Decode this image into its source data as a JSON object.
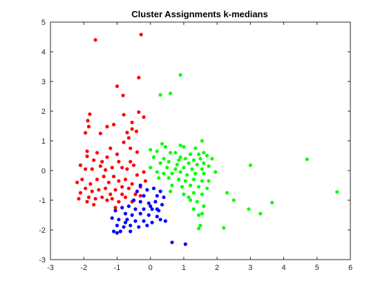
{
  "chart_data": {
    "type": "scatter",
    "title": "Cluster Assignments k-medians",
    "xlabel": "",
    "ylabel": "",
    "xlim": [
      -3,
      6
    ],
    "ylim": [
      -3,
      5
    ],
    "xticks": [
      -3,
      -2,
      -1,
      0,
      1,
      2,
      3,
      4,
      5,
      6
    ],
    "yticks": [
      -3,
      -2,
      -1,
      0,
      1,
      2,
      3,
      4,
      5
    ],
    "grid": false,
    "legend": "none",
    "series": [
      {
        "color": "#ff0000",
        "points": [
          [
            -1.65,
            4.4
          ],
          [
            -0.28,
            4.58
          ],
          [
            -0.35,
            3.13
          ],
          [
            -1.0,
            2.84
          ],
          [
            -0.82,
            2.53
          ],
          [
            -1.82,
            1.9
          ],
          [
            -1.88,
            1.68
          ],
          [
            -0.8,
            1.88
          ],
          [
            -0.35,
            1.97
          ],
          [
            -0.2,
            1.8
          ],
          [
            -1.85,
            1.48
          ],
          [
            -1.3,
            1.48
          ],
          [
            -1.95,
            1.27
          ],
          [
            -0.55,
            1.62
          ],
          [
            -1.1,
            1.55
          ],
          [
            -0.55,
            1.4
          ],
          [
            -0.7,
            1.28
          ],
          [
            -1.5,
            1.25
          ],
          [
            -0.65,
            1.1
          ],
          [
            -0.42,
            1.32
          ],
          [
            -0.8,
            0.95
          ],
          [
            -1.9,
            0.65
          ],
          [
            -1.9,
            0.48
          ],
          [
            -1.6,
            0.6
          ],
          [
            -1.2,
            0.75
          ],
          [
            -1.0,
            0.55
          ],
          [
            -0.6,
            0.75
          ],
          [
            -0.4,
            0.62
          ],
          [
            -2.1,
            0.18
          ],
          [
            -1.7,
            0.35
          ],
          [
            -1.45,
            0.3
          ],
          [
            -1.3,
            0.45
          ],
          [
            -0.95,
            0.3
          ],
          [
            -0.6,
            0.3
          ],
          [
            -0.5,
            0.18
          ],
          [
            -1.95,
            0.05
          ],
          [
            -1.75,
            0.05
          ],
          [
            -1.5,
            0.15
          ],
          [
            -1.35,
            0.02
          ],
          [
            -1.15,
            0.1
          ],
          [
            -0.85,
            0.1
          ],
          [
            -0.7,
            0.05
          ],
          [
            -2.2,
            -0.4
          ],
          [
            -2.05,
            -0.3
          ],
          [
            -1.8,
            -0.45
          ],
          [
            -1.6,
            -0.3
          ],
          [
            -1.4,
            -0.2
          ],
          [
            -1.25,
            -0.4
          ],
          [
            -1.1,
            -0.2
          ],
          [
            -0.95,
            -0.35
          ],
          [
            -0.75,
            -0.3
          ],
          [
            -0.55,
            -0.45
          ],
          [
            -0.4,
            -0.15
          ],
          [
            -0.2,
            -0.05
          ],
          [
            -0.15,
            -0.35
          ],
          [
            -2.1,
            -0.75
          ],
          [
            -1.95,
            -0.6
          ],
          [
            -1.75,
            -0.7
          ],
          [
            -1.55,
            -0.65
          ],
          [
            -1.35,
            -0.6
          ],
          [
            -1.2,
            -0.8
          ],
          [
            -1.05,
            -0.65
          ],
          [
            -0.85,
            -0.55
          ],
          [
            -0.65,
            -0.6
          ],
          [
            -0.45,
            -0.8
          ],
          [
            -0.3,
            -0.55
          ],
          [
            -2.15,
            -0.95
          ],
          [
            -1.85,
            -0.9
          ],
          [
            -1.65,
            -0.95
          ],
          [
            -1.45,
            -0.9
          ],
          [
            -1.3,
            -1.0
          ],
          [
            -1.15,
            -0.95
          ],
          [
            -0.95,
            -1.05
          ],
          [
            -0.75,
            -0.9
          ],
          [
            -0.55,
            -1.05
          ],
          [
            -1.9,
            -1.05
          ],
          [
            -1.7,
            -1.15
          ],
          [
            -1.05,
            -1.25
          ],
          [
            -0.85,
            -0.8
          ],
          [
            -0.3,
            -0.85
          ]
        ]
      },
      {
        "color": "#0000ff",
        "points": [
          [
            -0.3,
            -0.5
          ],
          [
            -0.1,
            -0.65
          ],
          [
            0.1,
            -0.6
          ],
          [
            0.3,
            -0.7
          ],
          [
            -0.2,
            -0.85
          ],
          [
            0.2,
            -0.85
          ],
          [
            0.4,
            -0.9
          ],
          [
            -0.5,
            -1.0
          ],
          [
            -0.3,
            -1.05
          ],
          [
            -0.05,
            -1.1
          ],
          [
            0.15,
            -1.05
          ],
          [
            0.35,
            -1.15
          ],
          [
            -0.65,
            -1.2
          ],
          [
            -0.85,
            -1.25
          ],
          [
            -0.45,
            -1.3
          ],
          [
            -0.2,
            -1.3
          ],
          [
            0.05,
            -1.3
          ],
          [
            0.25,
            -1.35
          ],
          [
            -1.05,
            -1.35
          ],
          [
            -0.75,
            -1.45
          ],
          [
            -0.55,
            -1.5
          ],
          [
            -0.3,
            -1.45
          ],
          [
            -0.05,
            -1.5
          ],
          [
            0.2,
            -1.55
          ],
          [
            -1.15,
            -1.6
          ],
          [
            -0.95,
            -1.65
          ],
          [
            -0.7,
            -1.65
          ],
          [
            -0.45,
            -1.7
          ],
          [
            -0.2,
            -1.7
          ],
          [
            0.05,
            -1.75
          ],
          [
            0.3,
            -1.65
          ],
          [
            0.45,
            -1.7
          ],
          [
            -1.0,
            -1.85
          ],
          [
            -0.8,
            -1.9
          ],
          [
            -0.6,
            -1.85
          ],
          [
            -0.35,
            -1.9
          ],
          [
            -0.1,
            -1.85
          ],
          [
            -1.1,
            -2.05
          ],
          [
            -0.9,
            -2.05
          ],
          [
            -0.6,
            -2.05
          ],
          [
            -1.0,
            -2.1
          ],
          [
            -0.75,
            -1.75
          ],
          [
            0.0,
            -1.2
          ],
          [
            -0.4,
            -0.7
          ],
          [
            0.2,
            -1.3
          ],
          [
            0.65,
            -2.42
          ],
          [
            1.05,
            -2.48
          ]
        ]
      },
      {
        "color": "#00ff00",
        "points": [
          [
            0.9,
            3.22
          ],
          [
            0.3,
            2.55
          ],
          [
            0.6,
            2.6
          ],
          [
            3.0,
            0.18
          ],
          [
            4.7,
            0.38
          ],
          [
            5.6,
            -0.72
          ],
          [
            2.3,
            -0.75
          ],
          [
            2.5,
            -1.0
          ],
          [
            2.95,
            -1.3
          ],
          [
            3.3,
            -1.45
          ],
          [
            3.65,
            -1.08
          ],
          [
            2.2,
            -1.93
          ],
          [
            1.45,
            -1.95
          ],
          [
            1.5,
            -1.85
          ],
          [
            1.55,
            1.0
          ],
          [
            0.35,
            0.9
          ],
          [
            0.45,
            0.8
          ],
          [
            0.9,
            0.85
          ],
          [
            1.0,
            0.8
          ],
          [
            1.35,
            0.75
          ],
          [
            0.0,
            0.7
          ],
          [
            0.2,
            0.65
          ],
          [
            0.6,
            0.6
          ],
          [
            0.75,
            0.6
          ],
          [
            1.2,
            0.55
          ],
          [
            1.45,
            0.55
          ],
          [
            1.6,
            0.6
          ],
          [
            1.7,
            0.5
          ],
          [
            0.1,
            0.45
          ],
          [
            0.4,
            0.4
          ],
          [
            0.9,
            0.45
          ],
          [
            1.05,
            0.4
          ],
          [
            1.3,
            0.35
          ],
          [
            1.5,
            0.4
          ],
          [
            1.85,
            0.4
          ],
          [
            0.3,
            0.25
          ],
          [
            0.55,
            0.3
          ],
          [
            0.8,
            0.2
          ],
          [
            1.15,
            0.25
          ],
          [
            1.4,
            0.2
          ],
          [
            1.6,
            0.25
          ],
          [
            0.0,
            0.1
          ],
          [
            0.5,
            0.1
          ],
          [
            0.75,
            0.05
          ],
          [
            1.0,
            0.1
          ],
          [
            1.25,
            0.05
          ],
          [
            1.55,
            0.05
          ],
          [
            1.75,
            0.15
          ],
          [
            0.2,
            -0.05
          ],
          [
            0.4,
            -0.1
          ],
          [
            0.65,
            -0.1
          ],
          [
            0.9,
            -0.05
          ],
          [
            1.1,
            -0.15
          ],
          [
            1.35,
            -0.1
          ],
          [
            1.6,
            -0.1
          ],
          [
            0.25,
            -0.25
          ],
          [
            0.55,
            -0.25
          ],
          [
            0.85,
            -0.3
          ],
          [
            1.05,
            -0.35
          ],
          [
            1.3,
            -0.3
          ],
          [
            1.55,
            -0.35
          ],
          [
            0.65,
            -0.5
          ],
          [
            0.95,
            -0.55
          ],
          [
            1.2,
            -0.5
          ],
          [
            1.45,
            -0.55
          ],
          [
            1.7,
            -0.6
          ],
          [
            0.6,
            -0.7
          ],
          [
            1.0,
            -0.8
          ],
          [
            1.3,
            -0.75
          ],
          [
            1.55,
            -0.8
          ],
          [
            1.2,
            -1.0
          ],
          [
            1.4,
            -1.05
          ],
          [
            1.6,
            -1.2
          ],
          [
            1.3,
            -1.3
          ],
          [
            1.55,
            -1.45
          ],
          [
            1.45,
            -1.5
          ],
          [
            1.15,
            -0.9
          ],
          [
            1.75,
            -0.35
          ],
          [
            0.85,
            0.35
          ],
          [
            1.95,
            -0.05
          ]
        ]
      }
    ]
  }
}
